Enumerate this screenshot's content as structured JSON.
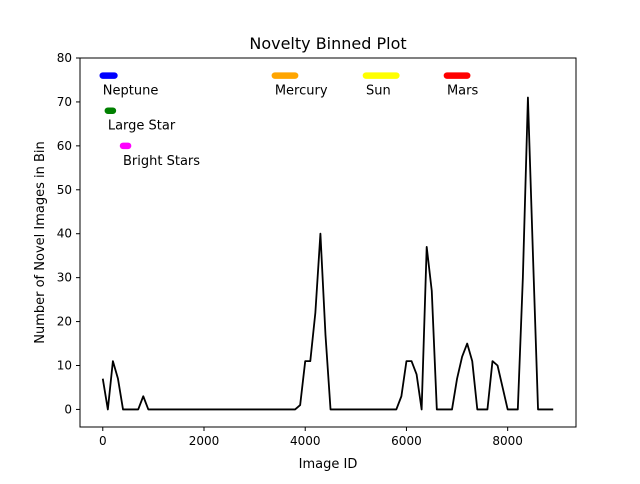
{
  "chart_data": {
    "type": "line",
    "title": "Novelty Binned Plot",
    "xlabel": "Image ID",
    "ylabel": "Number of Novel Images in Bin",
    "xlim": [
      -450,
      9350
    ],
    "ylim": [
      -4,
      80
    ],
    "xticks": [
      0,
      2000,
      4000,
      6000,
      8000
    ],
    "yticks": [
      0,
      10,
      20,
      30,
      40,
      50,
      60,
      70,
      80
    ],
    "grid": false,
    "line_color": "#000000",
    "series": [
      {
        "x": [
          0,
          100,
          200,
          300,
          400,
          500,
          600,
          700,
          800,
          900,
          1000,
          1100,
          1200,
          1300,
          1400,
          1500,
          1600,
          1700,
          1800,
          1900,
          2000,
          2100,
          2200,
          2300,
          2400,
          2500,
          2600,
          2700,
          2800,
          2900,
          3000,
          3100,
          3200,
          3300,
          3400,
          3500,
          3600,
          3700,
          3800,
          3900,
          4000,
          4100,
          4200,
          4300,
          4400,
          4500,
          4600,
          4700,
          4800,
          4900,
          5000,
          5100,
          5200,
          5300,
          5400,
          5500,
          5600,
          5700,
          5800,
          5900,
          6000,
          6100,
          6200,
          6300,
          6400,
          6500,
          6600,
          6700,
          6800,
          6900,
          7000,
          7100,
          7200,
          7300,
          7400,
          7500,
          7600,
          7700,
          7800,
          7900,
          8000,
          8100,
          8200,
          8300,
          8400,
          8500,
          8600,
          8700,
          8800,
          8900
        ],
        "y": [
          7,
          0,
          11,
          7,
          0,
          0,
          0,
          0,
          3,
          0,
          0,
          0,
          0,
          0,
          0,
          0,
          0,
          0,
          0,
          0,
          0,
          0,
          0,
          0,
          0,
          0,
          0,
          0,
          0,
          0,
          0,
          0,
          0,
          0,
          0,
          0,
          0,
          0,
          0,
          1,
          11,
          11,
          22,
          40,
          17,
          0,
          0,
          0,
          0,
          0,
          0,
          0,
          0,
          0,
          0,
          0,
          0,
          0,
          0,
          3,
          11,
          11,
          8,
          0,
          37,
          27,
          0,
          0,
          0,
          0,
          7,
          12,
          15,
          11,
          0,
          0,
          0,
          11,
          10,
          5,
          0,
          0,
          0,
          30,
          71,
          35,
          0,
          0,
          0,
          0
        ]
      }
    ],
    "annotations": [
      {
        "label": "Neptune",
        "x_start": 0,
        "x_end": 230,
        "y": 76,
        "color": "#0000ff"
      },
      {
        "label": "Large Star",
        "x_start": 100,
        "x_end": 200,
        "y": 68,
        "color": "#008000"
      },
      {
        "label": "Bright Stars",
        "x_start": 400,
        "x_end": 500,
        "y": 60,
        "color": "#ff00ff"
      },
      {
        "label": "Mercury",
        "x_start": 3400,
        "x_end": 3800,
        "y": 76,
        "color": "#ffa500"
      },
      {
        "label": "Sun",
        "x_start": 5200,
        "x_end": 5800,
        "y": 76,
        "color": "#ffff00"
      },
      {
        "label": "Mars",
        "x_start": 6800,
        "x_end": 7200,
        "y": 76,
        "color": "#ff0000"
      }
    ]
  }
}
